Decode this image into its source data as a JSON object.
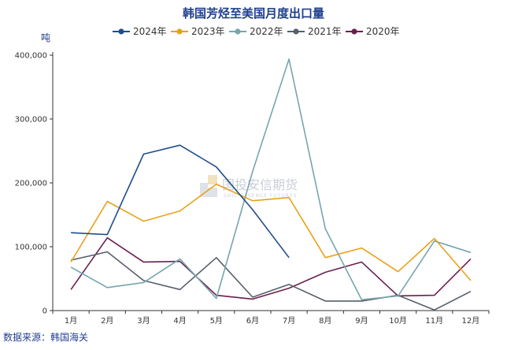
{
  "chart_data": {
    "type": "line",
    "title": "韩国芳烃至美国月度出口量",
    "ylabel": "吨",
    "source": "数据来源：韩国海关",
    "watermark": "国投安信期货",
    "watermark_sub": "SDIC ESSENCE FUTURES",
    "categories": [
      "1月",
      "2月",
      "3月",
      "4月",
      "5月",
      "6月",
      "7月",
      "8月",
      "9月",
      "10月",
      "11月",
      "12月"
    ],
    "ylim": [
      0,
      400000
    ],
    "yticks": [
      0,
      100000,
      200000,
      300000,
      400000
    ],
    "ytick_labels": [
      "0",
      "100,000",
      "200,000",
      "300,000",
      "400,000"
    ],
    "series": [
      {
        "name": "2024年",
        "color": "#1f4e8c",
        "values": [
          122000,
          119000,
          245000,
          259000,
          225000,
          158000,
          83000,
          null,
          null,
          null,
          null,
          null
        ]
      },
      {
        "name": "2023年",
        "color": "#e8a21a",
        "values": [
          76000,
          171000,
          140000,
          156000,
          198000,
          172000,
          177000,
          83000,
          98000,
          61000,
          113000,
          47000
        ]
      },
      {
        "name": "2022年",
        "color": "#76a6ae",
        "values": [
          68000,
          36000,
          44000,
          81000,
          19000,
          218000,
          394000,
          128000,
          17000,
          23000,
          109000,
          91000
        ]
      },
      {
        "name": "2021年",
        "color": "#56606a",
        "values": [
          79000,
          92000,
          47000,
          33000,
          83000,
          21000,
          41000,
          15000,
          15000,
          24000,
          1000,
          30000
        ]
      },
      {
        "name": "2020年",
        "color": "#6b1f4e",
        "values": [
          33000,
          114000,
          76000,
          77000,
          24000,
          18000,
          35000,
          60000,
          76000,
          23000,
          24000,
          81000
        ]
      }
    ]
  }
}
